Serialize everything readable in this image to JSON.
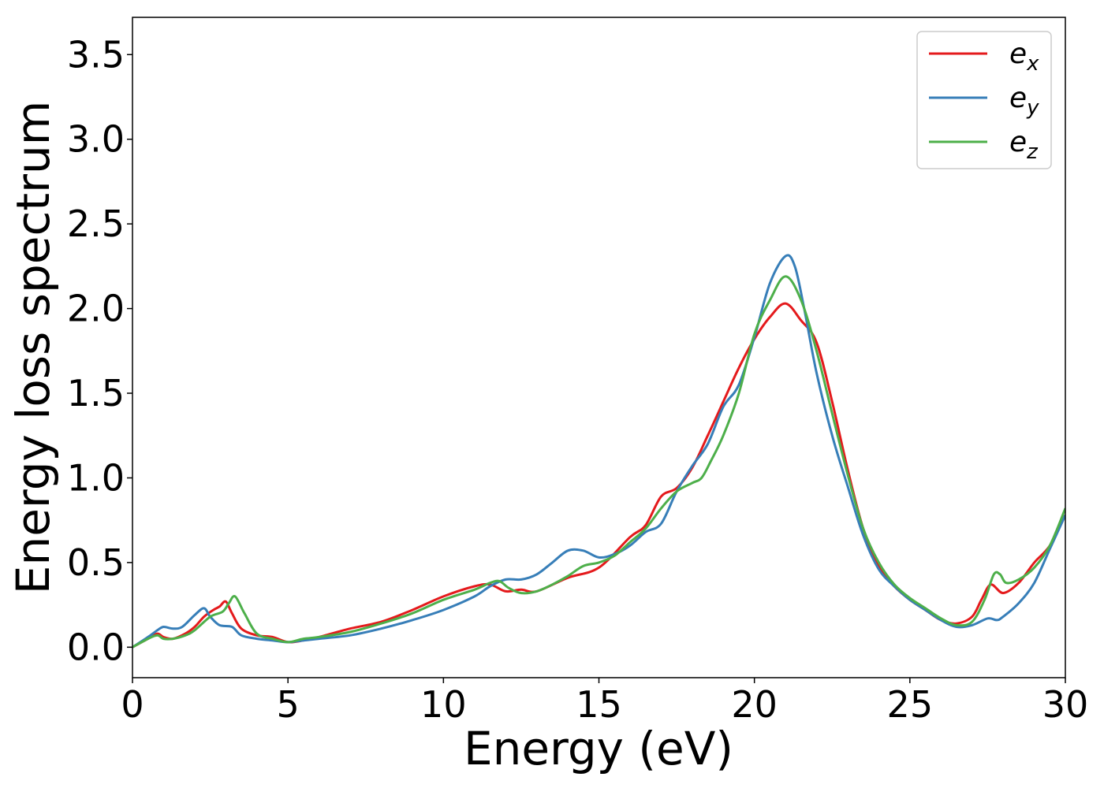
{
  "chart_data": {
    "type": "line",
    "xlabel": "Energy (eV)",
    "ylabel": "Energy loss spectrum",
    "xlim": [
      0,
      30
    ],
    "ylim": [
      -0.18,
      3.72
    ],
    "xticks": [
      "0",
      "5",
      "10",
      "15",
      "20",
      "25",
      "30"
    ],
    "yticks": [
      "0.0",
      "0.5",
      "1.0",
      "1.5",
      "2.0",
      "2.5",
      "3.0",
      "3.5"
    ],
    "grid": false,
    "legend_position": "top-right",
    "series": [
      {
        "name": "e",
        "subscript": "x",
        "color": "#e41a1c",
        "x": [
          0,
          0.5,
          0.8,
          1.0,
          1.3,
          1.7,
          2.0,
          2.3,
          2.6,
          2.8,
          3.0,
          3.2,
          3.5,
          4.0,
          4.5,
          5.0,
          5.5,
          6.0,
          7.0,
          8.0,
          9.0,
          10.0,
          11.0,
          11.5,
          12.0,
          12.5,
          13.0,
          14.0,
          15.0,
          16.0,
          16.5,
          17.0,
          17.5,
          18.0,
          18.5,
          19.0,
          19.5,
          20.0,
          20.5,
          21.0,
          21.5,
          22.0,
          22.5,
          23.0,
          23.5,
          24.0,
          24.5,
          25.0,
          25.5,
          26.0,
          26.5,
          27.0,
          27.3,
          27.6,
          28.0,
          28.5,
          29.0,
          29.5,
          30.0
        ],
        "y": [
          0.0,
          0.05,
          0.08,
          0.06,
          0.05,
          0.08,
          0.12,
          0.18,
          0.22,
          0.24,
          0.27,
          0.2,
          0.11,
          0.07,
          0.06,
          0.03,
          0.04,
          0.06,
          0.11,
          0.15,
          0.22,
          0.3,
          0.36,
          0.37,
          0.33,
          0.34,
          0.33,
          0.41,
          0.47,
          0.65,
          0.72,
          0.89,
          0.94,
          1.06,
          1.25,
          1.45,
          1.65,
          1.82,
          1.95,
          2.03,
          1.93,
          1.8,
          1.45,
          1.05,
          0.7,
          0.48,
          0.36,
          0.28,
          0.22,
          0.16,
          0.14,
          0.18,
          0.28,
          0.37,
          0.32,
          0.38,
          0.5,
          0.6,
          0.78
        ]
      },
      {
        "name": "e",
        "subscript": "y",
        "color": "#377eb8",
        "x": [
          0,
          0.5,
          0.8,
          1.0,
          1.3,
          1.6,
          2.0,
          2.3,
          2.5,
          2.8,
          3.2,
          3.5,
          4.0,
          4.5,
          5.0,
          5.5,
          6.0,
          7.0,
          8.0,
          9.0,
          10.0,
          11.0,
          11.5,
          12.0,
          12.5,
          13.0,
          13.5,
          14.0,
          14.5,
          15.0,
          15.5,
          16.0,
          16.5,
          17.0,
          17.5,
          18.0,
          18.5,
          19.0,
          19.5,
          20.0,
          20.5,
          21.0,
          21.3,
          21.6,
          22.0,
          22.5,
          23.0,
          23.5,
          24.0,
          24.5,
          25.0,
          25.5,
          26.0,
          26.5,
          27.0,
          27.5,
          27.8,
          28.0,
          28.5,
          29.0,
          29.5,
          30.0
        ],
        "y": [
          0.0,
          0.06,
          0.1,
          0.12,
          0.11,
          0.12,
          0.19,
          0.23,
          0.18,
          0.13,
          0.12,
          0.07,
          0.05,
          0.04,
          0.03,
          0.04,
          0.05,
          0.07,
          0.11,
          0.16,
          0.22,
          0.3,
          0.36,
          0.4,
          0.4,
          0.43,
          0.5,
          0.57,
          0.57,
          0.53,
          0.55,
          0.6,
          0.68,
          0.73,
          0.92,
          1.07,
          1.2,
          1.42,
          1.55,
          1.83,
          2.15,
          2.31,
          2.25,
          2.0,
          1.62,
          1.25,
          0.95,
          0.66,
          0.46,
          0.36,
          0.28,
          0.22,
          0.16,
          0.12,
          0.13,
          0.17,
          0.16,
          0.18,
          0.26,
          0.38,
          0.58,
          0.78
        ]
      },
      {
        "name": "e",
        "subscript": "z",
        "color": "#4daf4a",
        "x": [
          0,
          0.5,
          0.8,
          1.0,
          1.3,
          1.7,
          2.0,
          2.5,
          2.9,
          3.1,
          3.3,
          3.6,
          4.0,
          4.5,
          5.0,
          5.5,
          6.0,
          7.0,
          8.0,
          9.0,
          10.0,
          11.0,
          11.5,
          11.8,
          12.1,
          12.5,
          13.0,
          13.5,
          14.0,
          14.5,
          15.0,
          15.5,
          16.0,
          16.5,
          17.0,
          17.5,
          18.0,
          18.3,
          18.6,
          19.0,
          19.5,
          20.0,
          20.5,
          21.0,
          21.5,
          22.0,
          22.5,
          23.0,
          23.5,
          24.0,
          24.5,
          25.0,
          25.5,
          26.0,
          26.5,
          27.0,
          27.4,
          27.7,
          27.9,
          28.1,
          28.5,
          29.0,
          29.5,
          30.0
        ],
        "y": [
          0.0,
          0.05,
          0.07,
          0.05,
          0.05,
          0.07,
          0.1,
          0.18,
          0.21,
          0.26,
          0.3,
          0.2,
          0.08,
          0.05,
          0.03,
          0.05,
          0.06,
          0.09,
          0.14,
          0.2,
          0.28,
          0.34,
          0.38,
          0.39,
          0.35,
          0.32,
          0.33,
          0.37,
          0.42,
          0.48,
          0.5,
          0.54,
          0.62,
          0.7,
          0.82,
          0.92,
          0.97,
          1.0,
          1.1,
          1.25,
          1.5,
          1.85,
          2.05,
          2.19,
          2.05,
          1.75,
          1.38,
          1.02,
          0.7,
          0.5,
          0.37,
          0.29,
          0.23,
          0.17,
          0.13,
          0.15,
          0.28,
          0.43,
          0.43,
          0.38,
          0.4,
          0.47,
          0.6,
          0.82
        ]
      }
    ]
  }
}
